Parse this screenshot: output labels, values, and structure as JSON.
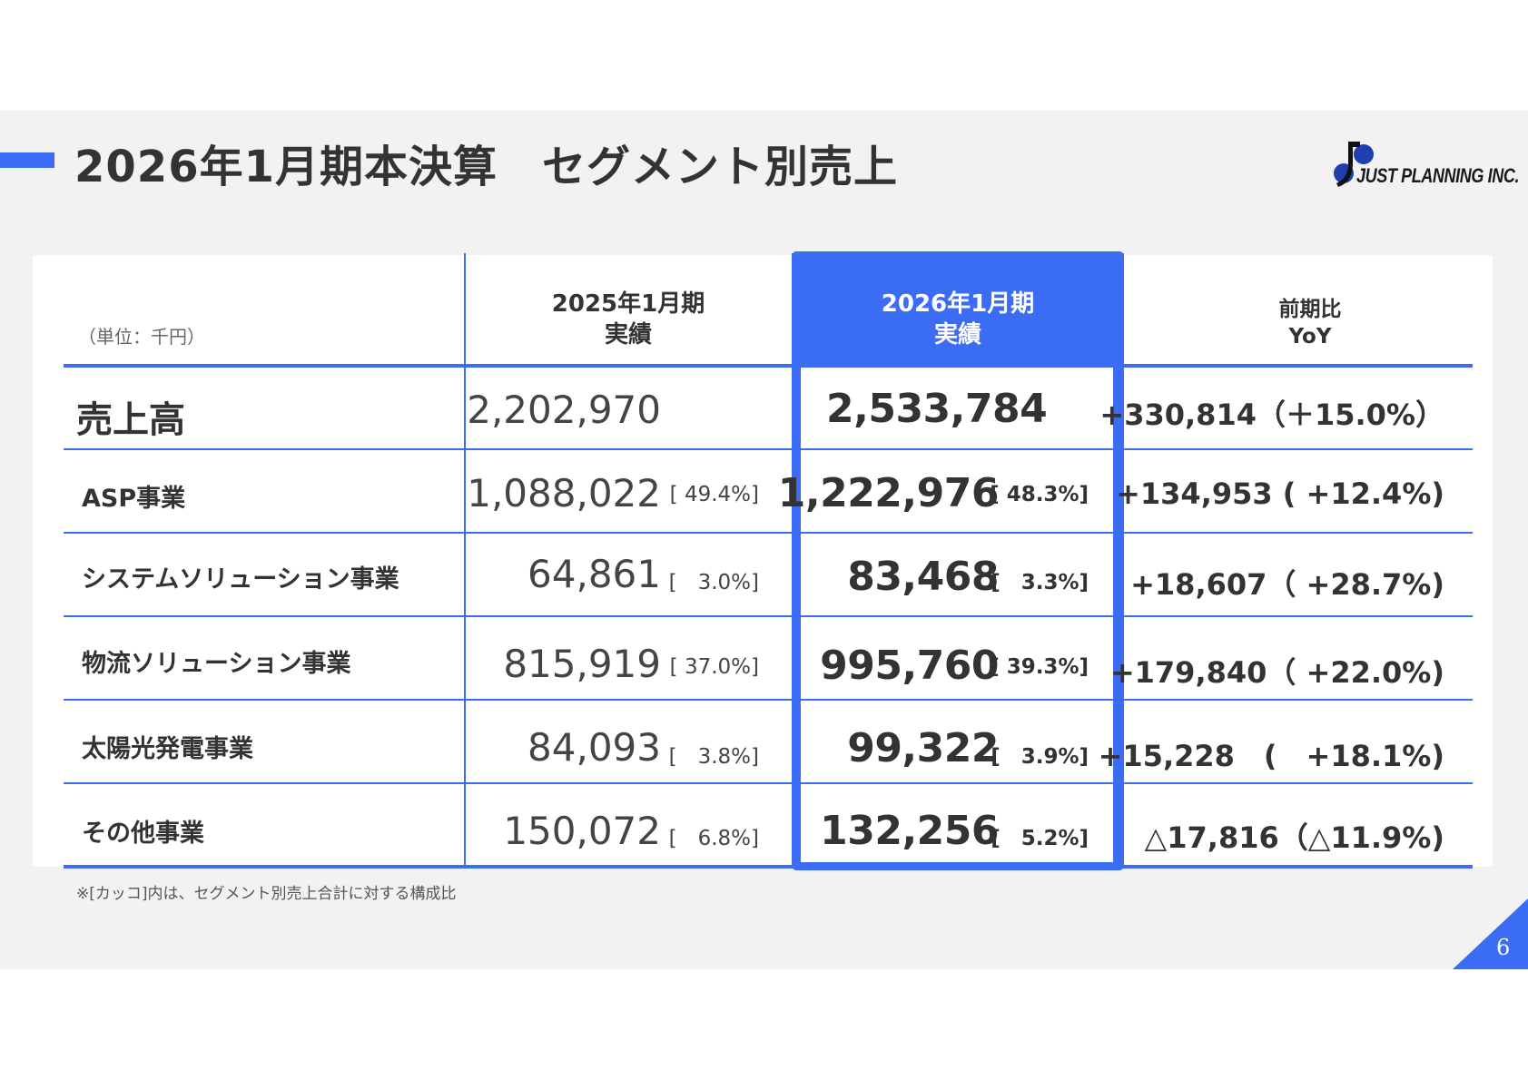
{
  "header": {
    "title": "2026年1月期本決算　セグメント別売上",
    "logo_text": "JUST PLANNING INC."
  },
  "table": {
    "unit": "（単位：千円）",
    "columns": {
      "prev": {
        "line1": "2025年1月期",
        "line2": "実績"
      },
      "curr": {
        "line1": "2026年1月期",
        "line2": "実績"
      },
      "yoy": {
        "line1": "前期比",
        "line2": "YoY"
      }
    },
    "rows": [
      {
        "label": "売上高",
        "prev": "2,202,970",
        "prev_pct": "",
        "curr": "2,533,784",
        "curr_pct": "",
        "yoy": "+330,814（＋15.0%）"
      },
      {
        "label": "ASP事業",
        "prev": "1,088,022",
        "prev_pct": "[ 49.4%]",
        "curr": "1,222,976",
        "curr_pct": "[ 48.3%]",
        "yoy": "+134,953 ( +12.4%)"
      },
      {
        "label": "システムソリューション事業",
        "prev": "64,861",
        "prev_pct": "[　3.0%]",
        "curr": "83,468",
        "curr_pct": "[　3.3%]",
        "yoy": "+18,607（ +28.7%)"
      },
      {
        "label": "物流ソリューション事業",
        "prev": "815,919",
        "prev_pct": "[ 37.0%]",
        "curr": "995,760",
        "curr_pct": "[ 39.3%]",
        "yoy": "+179,840（ +22.0%)"
      },
      {
        "label": "太陽光発電事業",
        "prev": "84,093",
        "prev_pct": "[　3.8%]",
        "curr": "99,322",
        "curr_pct": "[　3.9%]",
        "yoy": "+15,228　(　+18.1%)"
      },
      {
        "label": "その他事業",
        "prev": "150,072",
        "prev_pct": "[　6.8%]",
        "curr": "132,256",
        "curr_pct": "[　5.2%]",
        "yoy": "△17,816（△11.9%)"
      }
    ],
    "footnote": "※[カッコ]内は、セグメント別売上合計に対する構成比"
  },
  "page_number": "6",
  "colors": {
    "accent": "#3b6cf6",
    "background": "#f2f2f2",
    "text": "#333333"
  }
}
